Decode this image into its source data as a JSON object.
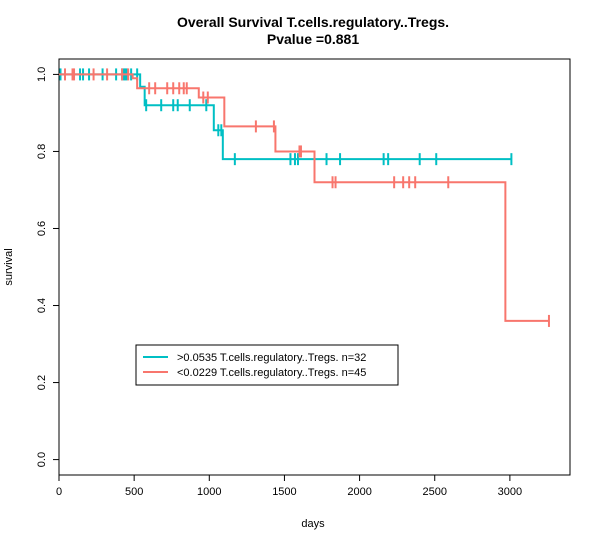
{
  "chart_data": {
    "type": "line",
    "title": "Overall Survival T.cells.regulatory..Tregs.",
    "subtitle": "Pvalue =0.881",
    "xlabel": "days",
    "ylabel": "survival",
    "xlim": [
      0,
      3400
    ],
    "ylim": [
      -0.04,
      1.04
    ],
    "x_ticks": [
      0,
      500,
      1000,
      1500,
      2000,
      2500,
      3000
    ],
    "y_ticks": [
      0.0,
      0.2,
      0.4,
      0.6,
      0.8,
      1.0
    ],
    "x_tick_labels": [
      "0",
      "500",
      "1000",
      "1500",
      "2000",
      "2500",
      "3000"
    ],
    "y_tick_labels": [
      "0.0",
      "0.2",
      "0.4",
      "0.6",
      "0.8",
      "1.0"
    ],
    "grid": false,
    "legend_position": "bottom-left",
    "series": [
      {
        "name": ">0.0535 T.cells.regulatory..Tregs. n=32",
        "color": "#00BFC4",
        "steps": [
          [
            0,
            1.0
          ],
          [
            540,
            0.968
          ],
          [
            570,
            0.92
          ],
          [
            1030,
            0.855
          ],
          [
            1090,
            0.78
          ],
          [
            3010,
            0.78
          ]
        ],
        "censors": [
          [
            10,
            1.0
          ],
          [
            140,
            1.0
          ],
          [
            160,
            1.0
          ],
          [
            200,
            1.0
          ],
          [
            290,
            1.0
          ],
          [
            380,
            1.0
          ],
          [
            420,
            1.0
          ],
          [
            430,
            1.0
          ],
          [
            440,
            1.0
          ],
          [
            450,
            1.0
          ],
          [
            480,
            1.0
          ],
          [
            520,
            1.0
          ],
          [
            580,
            0.92
          ],
          [
            680,
            0.92
          ],
          [
            760,
            0.92
          ],
          [
            790,
            0.92
          ],
          [
            870,
            0.92
          ],
          [
            980,
            0.92
          ],
          [
            1060,
            0.855
          ],
          [
            1080,
            0.855
          ],
          [
            1170,
            0.78
          ],
          [
            1540,
            0.78
          ],
          [
            1570,
            0.78
          ],
          [
            1590,
            0.78
          ],
          [
            1780,
            0.78
          ],
          [
            1870,
            0.78
          ],
          [
            2160,
            0.78
          ],
          [
            2190,
            0.78
          ],
          [
            2400,
            0.78
          ],
          [
            2510,
            0.78
          ],
          [
            3010,
            0.78
          ]
        ]
      },
      {
        "name": "<0.0229 T.cells.regulatory..Tregs. n=45",
        "color": "#F8766D",
        "steps": [
          [
            0,
            1.0
          ],
          [
            490,
            0.99
          ],
          [
            520,
            0.964
          ],
          [
            930,
            0.94
          ],
          [
            1100,
            0.865
          ],
          [
            1440,
            0.8
          ],
          [
            1700,
            0.72
          ],
          [
            2970,
            0.36
          ],
          [
            3260,
            0.36
          ]
        ],
        "censors": [
          [
            40,
            1.0
          ],
          [
            90,
            1.0
          ],
          [
            100,
            1.0
          ],
          [
            230,
            1.0
          ],
          [
            320,
            1.0
          ],
          [
            420,
            1.0
          ],
          [
            460,
            1.0
          ],
          [
            600,
            0.964
          ],
          [
            640,
            0.964
          ],
          [
            720,
            0.964
          ],
          [
            760,
            0.964
          ],
          [
            800,
            0.964
          ],
          [
            830,
            0.964
          ],
          [
            850,
            0.964
          ],
          [
            960,
            0.94
          ],
          [
            990,
            0.94
          ],
          [
            1310,
            0.865
          ],
          [
            1430,
            0.865
          ],
          [
            1600,
            0.8
          ],
          [
            1610,
            0.8
          ],
          [
            1820,
            0.72
          ],
          [
            1840,
            0.72
          ],
          [
            2230,
            0.72
          ],
          [
            2290,
            0.72
          ],
          [
            2330,
            0.72
          ],
          [
            2370,
            0.72
          ],
          [
            2590,
            0.72
          ],
          [
            3260,
            0.36
          ]
        ]
      }
    ]
  }
}
